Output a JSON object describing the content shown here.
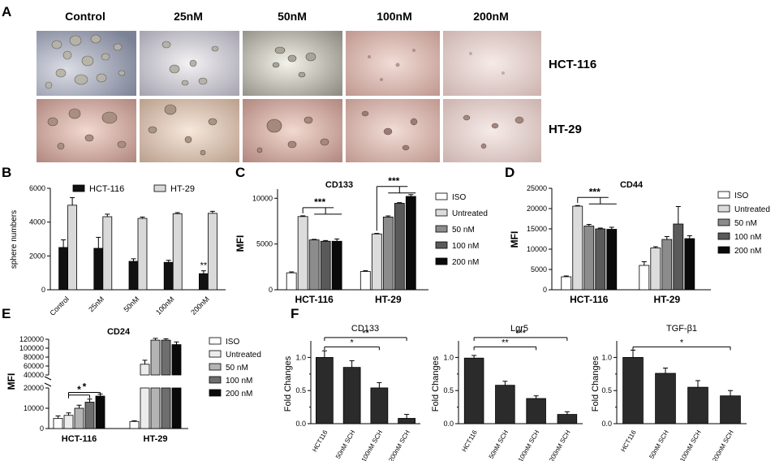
{
  "panel_letters": {
    "a": "A",
    "b": "B",
    "c": "C",
    "d": "D",
    "e": "E",
    "f": "F"
  },
  "panel_a": {
    "columns": [
      "Control",
      "25nM",
      "50nM",
      "100nM",
      "200nM"
    ],
    "rows": [
      "HCT-116",
      "HT-29"
    ]
  },
  "chart_data": [
    {
      "id": "B",
      "type": "bar",
      "title": "",
      "ylabel": "sphere numbers",
      "ylim": [
        0,
        6000
      ],
      "yticks": [
        0,
        2000,
        4000,
        6000
      ],
      "categories": [
        "Control",
        "25nM",
        "50nM",
        "100nM",
        "200nM"
      ],
      "series": [
        {
          "name": "HCT-116",
          "color": "#111111",
          "values": [
            2500,
            2450,
            1680,
            1620,
            950
          ],
          "errors": [
            450,
            650,
            150,
            120,
            170
          ]
        },
        {
          "name": "HT-29",
          "color": "#d9d9d9",
          "values": [
            5000,
            4320,
            4220,
            4500,
            4520
          ],
          "errors": [
            450,
            150,
            80,
            60,
            120
          ]
        }
      ],
      "annotations": [
        {
          "category": "200nM",
          "series": 0,
          "text": "**"
        }
      ],
      "legend": "top"
    },
    {
      "id": "C",
      "type": "bar",
      "title": "CD133",
      "ylabel": "MFI",
      "ylim": [
        0,
        11000
      ],
      "yticks": [
        0,
        5000,
        10000
      ],
      "categories": [
        "HCT-116",
        "HT-29"
      ],
      "series": [
        {
          "name": "ISO",
          "color": "#ffffff",
          "values": [
            1850,
            2000
          ],
          "errors": [
            100,
            80
          ]
        },
        {
          "name": "Untreated",
          "color": "#dcdcdc",
          "values": [
            8000,
            6100
          ],
          "errors": [
            80,
            60
          ]
        },
        {
          "name": "50 nM",
          "color": "#8c8c8c",
          "values": [
            5450,
            7950
          ],
          "errors": [
            60,
            120
          ]
        },
        {
          "name": "100 nM",
          "color": "#5a5a5a",
          "values": [
            5300,
            9450
          ],
          "errors": [
            80,
            70
          ]
        },
        {
          "name": "200 nM",
          "color": "#0a0a0a",
          "values": [
            5300,
            10200
          ],
          "errors": [
            250,
            200
          ]
        }
      ],
      "annotations": [
        {
          "category": "HCT-116",
          "text": "***"
        },
        {
          "category": "HT-29",
          "text": "***"
        }
      ],
      "legend": "right"
    },
    {
      "id": "D",
      "type": "bar",
      "title": "CD44",
      "ylabel": "MFI",
      "ylim": [
        0,
        25000
      ],
      "yticks": [
        0,
        5000,
        10000,
        15000,
        20000,
        25000
      ],
      "categories": [
        "HCT-116",
        "HT-29"
      ],
      "series": [
        {
          "name": "ISO",
          "color": "#ffffff",
          "values": [
            3200,
            6000
          ],
          "errors": [
            200,
            900
          ]
        },
        {
          "name": "Untreated",
          "color": "#dcdcdc",
          "values": [
            20600,
            10300
          ],
          "errors": [
            150,
            300
          ]
        },
        {
          "name": "50 nM",
          "color": "#8c8c8c",
          "values": [
            15700,
            12400
          ],
          "errors": [
            400,
            700
          ]
        },
        {
          "name": "100 nM",
          "color": "#5a5a5a",
          "values": [
            15000,
            16200
          ],
          "errors": [
            200,
            4300
          ]
        },
        {
          "name": "200 nM",
          "color": "#0a0a0a",
          "values": [
            14900,
            12600
          ],
          "errors": [
            500,
            700
          ]
        }
      ],
      "annotations": [
        {
          "category": "HCT-116",
          "text": "***"
        }
      ],
      "legend": "right"
    },
    {
      "id": "E",
      "type": "bar",
      "title": "CD24",
      "ylabel": "MFI",
      "broken_axis": {
        "lower": [
          0,
          20000
        ],
        "upper": [
          40000,
          120000
        ]
      },
      "yticks": [
        0,
        10000,
        20000,
        40000,
        60000,
        80000,
        100000,
        120000
      ],
      "yticklabels": [
        "0",
        "10000",
        "20000",
        "40000",
        "60000",
        "80000",
        "100000",
        "120000"
      ],
      "categories": [
        "HCT-116",
        "HT-29"
      ],
      "series": [
        {
          "name": "ISO",
          "color": "#ffffff",
          "values": [
            5000,
            3500
          ],
          "errors": [
            1200,
            300
          ]
        },
        {
          "name": "Untreated",
          "color": "#ececec",
          "values": [
            6500,
            64000
          ],
          "errors": [
            1200,
            9000
          ]
        },
        {
          "name": "50 nM",
          "color": "#b4b4b4",
          "values": [
            10000,
            118000
          ],
          "errors": [
            1500,
            4000
          ]
        },
        {
          "name": "100 nM",
          "color": "#6e6e6e",
          "values": [
            13000,
            118000
          ],
          "errors": [
            1500,
            3000
          ]
        },
        {
          "name": "200 nM",
          "color": "#0a0a0a",
          "values": [
            16000,
            108000
          ],
          "errors": [
            1000,
            6000
          ]
        }
      ],
      "annotations": [
        {
          "text": "*"
        },
        {
          "text": "*"
        }
      ],
      "legend": "right"
    },
    {
      "id": "F1",
      "type": "bar",
      "title": "CD133",
      "ylabel": "Fold Changes",
      "ylim": [
        0,
        1.25
      ],
      "yticks": [
        0.0,
        0.5,
        1.0
      ],
      "yticklabels": [
        "0.0",
        "0.5",
        "1.0"
      ],
      "yminor": [
        0.25,
        0.75
      ],
      "categories": [
        "HCT116",
        "50nM SCH",
        "100nM SCH",
        "200nM SCH"
      ],
      "values": [
        1.0,
        0.85,
        0.54,
        0.08
      ],
      "errors": [
        0.1,
        0.1,
        0.08,
        0.06
      ],
      "annotations": [
        "**",
        "*"
      ]
    },
    {
      "id": "F2",
      "type": "bar",
      "title": "Lgr5",
      "ylabel": "Fold Changes",
      "ylim": [
        0,
        1.25
      ],
      "yticks": [
        0.0,
        0.5,
        1.0
      ],
      "yticklabels": [
        "0.0",
        "0.5",
        "1.0"
      ],
      "yminor": [
        0.25,
        0.75
      ],
      "categories": [
        "HCT116",
        "50nM SCH",
        "100nM SCH",
        "200nM SCH"
      ],
      "values": [
        0.99,
        0.58,
        0.38,
        0.14
      ],
      "errors": [
        0.04,
        0.06,
        0.04,
        0.04
      ],
      "annotations": [
        "***",
        "**"
      ]
    },
    {
      "id": "F3",
      "type": "bar",
      "title": "TGF-β1",
      "ylabel": "Fold Changes",
      "ylim": [
        0,
        1.25
      ],
      "yticks": [
        0.0,
        0.5,
        1.0
      ],
      "yticklabels": [
        "0.0",
        "0.5",
        "1.0"
      ],
      "yminor": [
        0.25,
        0.75
      ],
      "categories": [
        "HCT116",
        "50nM SCH",
        "100nM SCH",
        "200nM SCH"
      ],
      "values": [
        1.0,
        0.76,
        0.55,
        0.42
      ],
      "errors": [
        0.11,
        0.08,
        0.1,
        0.08
      ],
      "annotations": [
        "*"
      ]
    }
  ]
}
